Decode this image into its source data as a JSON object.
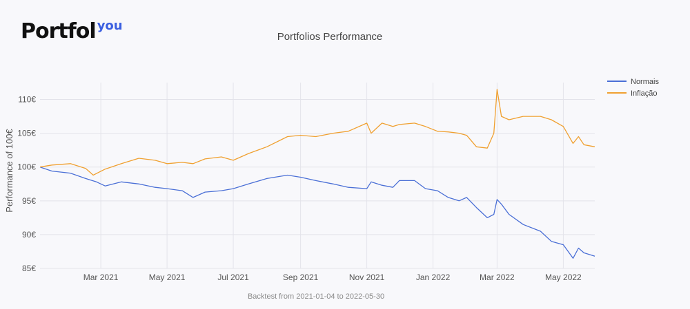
{
  "logo": {
    "main": "Portfol",
    "sup": "you"
  },
  "chart_data": {
    "type": "line",
    "title": "Portfolios Performance",
    "ylabel": "Performance of 100€",
    "footer": "Backtest from 2021-01-04 to 2022-05-30",
    "x_range": [
      "2021-01-04",
      "2022-05-30"
    ],
    "ylim": [
      85,
      112.5
    ],
    "y_ticks": [
      85,
      90,
      95,
      100,
      105,
      110
    ],
    "y_tick_labels": [
      "85€",
      "90€",
      "95€",
      "100€",
      "105€",
      "110€"
    ],
    "x_ticks": [
      "2021-03-01",
      "2021-05-01",
      "2021-07-01",
      "2021-09-01",
      "2021-11-01",
      "2022-01-01",
      "2022-03-01",
      "2022-05-01"
    ],
    "x_tick_labels": [
      "Mar 2021",
      "May 2021",
      "Jul 2021",
      "Sep 2021",
      "Nov 2021",
      "Jan 2022",
      "Mar 2022",
      "May 2022"
    ],
    "grid": true,
    "legend_position": "top-right",
    "series": [
      {
        "name": "Normais",
        "color": "#4a6fd6",
        "points": [
          [
            "2021-01-04",
            100
          ],
          [
            "2021-01-15",
            99.4
          ],
          [
            "2021-02-01",
            99.1
          ],
          [
            "2021-02-15",
            98.3
          ],
          [
            "2021-02-25",
            97.8
          ],
          [
            "2021-03-05",
            97.2
          ],
          [
            "2021-03-20",
            97.8
          ],
          [
            "2021-04-05",
            97.5
          ],
          [
            "2021-04-20",
            97.0
          ],
          [
            "2021-05-01",
            96.8
          ],
          [
            "2021-05-15",
            96.5
          ],
          [
            "2021-05-25",
            95.5
          ],
          [
            "2021-06-05",
            96.3
          ],
          [
            "2021-06-20",
            96.5
          ],
          [
            "2021-07-01",
            96.8
          ],
          [
            "2021-07-15",
            97.5
          ],
          [
            "2021-08-01",
            98.3
          ],
          [
            "2021-08-20",
            98.8
          ],
          [
            "2021-09-01",
            98.5
          ],
          [
            "2021-09-15",
            98.0
          ],
          [
            "2021-10-01",
            97.5
          ],
          [
            "2021-10-15",
            97.0
          ],
          [
            "2021-11-01",
            96.8
          ],
          [
            "2021-11-05",
            97.8
          ],
          [
            "2021-11-15",
            97.3
          ],
          [
            "2021-11-25",
            97.0
          ],
          [
            "2021-12-01",
            98.0
          ],
          [
            "2021-12-15",
            98.0
          ],
          [
            "2021-12-25",
            96.8
          ],
          [
            "2022-01-05",
            96.5
          ],
          [
            "2022-01-15",
            95.5
          ],
          [
            "2022-01-25",
            95.0
          ],
          [
            "2022-02-01",
            95.5
          ],
          [
            "2022-02-10",
            94.0
          ],
          [
            "2022-02-20",
            92.5
          ],
          [
            "2022-02-26",
            93.0
          ],
          [
            "2022-03-01",
            95.2
          ],
          [
            "2022-03-05",
            94.5
          ],
          [
            "2022-03-12",
            93.0
          ],
          [
            "2022-03-25",
            91.5
          ],
          [
            "2022-04-10",
            90.5
          ],
          [
            "2022-04-20",
            89.0
          ],
          [
            "2022-05-01",
            88.5
          ],
          [
            "2022-05-10",
            86.5
          ],
          [
            "2022-05-15",
            88.0
          ],
          [
            "2022-05-20",
            87.3
          ],
          [
            "2022-05-30",
            86.8
          ]
        ]
      },
      {
        "name": "Inflação",
        "color": "#f0a030",
        "points": [
          [
            "2021-01-04",
            100
          ],
          [
            "2021-01-15",
            100.3
          ],
          [
            "2021-02-01",
            100.5
          ],
          [
            "2021-02-15",
            99.8
          ],
          [
            "2021-02-22",
            98.8
          ],
          [
            "2021-03-05",
            99.7
          ],
          [
            "2021-03-20",
            100.5
          ],
          [
            "2021-04-05",
            101.3
          ],
          [
            "2021-04-20",
            101.0
          ],
          [
            "2021-05-01",
            100.5
          ],
          [
            "2021-05-15",
            100.7
          ],
          [
            "2021-05-25",
            100.5
          ],
          [
            "2021-06-05",
            101.2
          ],
          [
            "2021-06-20",
            101.5
          ],
          [
            "2021-07-01",
            101.0
          ],
          [
            "2021-07-15",
            102.0
          ],
          [
            "2021-08-01",
            103.0
          ],
          [
            "2021-08-20",
            104.5
          ],
          [
            "2021-09-01",
            104.7
          ],
          [
            "2021-09-15",
            104.5
          ],
          [
            "2021-10-01",
            105.0
          ],
          [
            "2021-10-15",
            105.3
          ],
          [
            "2021-11-01",
            106.5
          ],
          [
            "2021-11-05",
            105.0
          ],
          [
            "2021-11-15",
            106.5
          ],
          [
            "2021-11-25",
            106.0
          ],
          [
            "2021-12-01",
            106.3
          ],
          [
            "2021-12-15",
            106.5
          ],
          [
            "2021-12-25",
            106.0
          ],
          [
            "2022-01-05",
            105.3
          ],
          [
            "2022-01-15",
            105.2
          ],
          [
            "2022-01-25",
            105.0
          ],
          [
            "2022-02-01",
            104.7
          ],
          [
            "2022-02-10",
            103.0
          ],
          [
            "2022-02-20",
            102.8
          ],
          [
            "2022-02-26",
            105.0
          ],
          [
            "2022-03-01",
            111.5
          ],
          [
            "2022-03-05",
            107.5
          ],
          [
            "2022-03-12",
            107.0
          ],
          [
            "2022-03-25",
            107.5
          ],
          [
            "2022-04-10",
            107.5
          ],
          [
            "2022-04-20",
            107.0
          ],
          [
            "2022-05-01",
            106.0
          ],
          [
            "2022-05-10",
            103.5
          ],
          [
            "2022-05-15",
            104.5
          ],
          [
            "2022-05-20",
            103.3
          ],
          [
            "2022-05-30",
            103.0
          ]
        ]
      }
    ]
  }
}
